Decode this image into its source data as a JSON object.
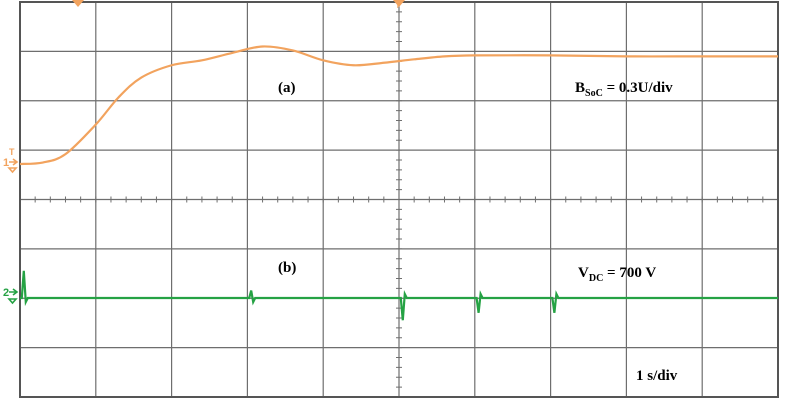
{
  "colors": {
    "grid": "#6e6e6e",
    "frame": "#555555",
    "trace_a": "#f2a35e",
    "trace_b": "#25a244",
    "marker_a": "#f2a35e",
    "marker_b": "#25a244"
  },
  "labels": {
    "trace_a_tag": "(a)",
    "trace_b_tag": "(b)",
    "trace_a_scale_main": "B",
    "trace_a_scale_sub": "SoC",
    "trace_a_scale_rest": " = 0.3U/div",
    "trace_b_scale_main": "V",
    "trace_b_scale_sub": "DC",
    "trace_b_scale_rest": " = 700 V",
    "time_scale": "1 s/div",
    "channel_1": "1",
    "channel_2": "2",
    "trigger_marker": "T"
  },
  "chart_data": {
    "type": "line",
    "grid": true,
    "divisions": {
      "x": 10,
      "y": 8
    },
    "x_unit": "s",
    "x_per_div": 1,
    "xlim": [
      0,
      10
    ],
    "series": [
      {
        "id": "a",
        "scale_per_div": 0.3,
        "unit": "U",
        "x": [
          0,
          0.3,
          0.6,
          1.0,
          1.3,
          1.6,
          2.0,
          2.4,
          2.8,
          3.2,
          3.6,
          4.0,
          4.4,
          4.8,
          5.2,
          5.6,
          6.0,
          7.0,
          8.0,
          9.0,
          10.0
        ],
        "y": [
          0,
          0.03,
          0.2,
          0.8,
          1.35,
          1.75,
          2.0,
          2.1,
          2.25,
          2.38,
          2.3,
          2.1,
          2.0,
          2.05,
          2.12,
          2.18,
          2.2,
          2.2,
          2.18,
          2.18,
          2.18
        ]
      },
      {
        "id": "b",
        "scale_per_div": 700,
        "unit": "V",
        "baseline": 0,
        "events": [
          {
            "x": 0.05,
            "dy": 0.55
          },
          {
            "x": 3.05,
            "dy": 0.15
          },
          {
            "x": 5.05,
            "dy": -0.45
          },
          {
            "x": 6.05,
            "dy": -0.3
          },
          {
            "x": 7.05,
            "dy": -0.3
          }
        ]
      }
    ]
  }
}
